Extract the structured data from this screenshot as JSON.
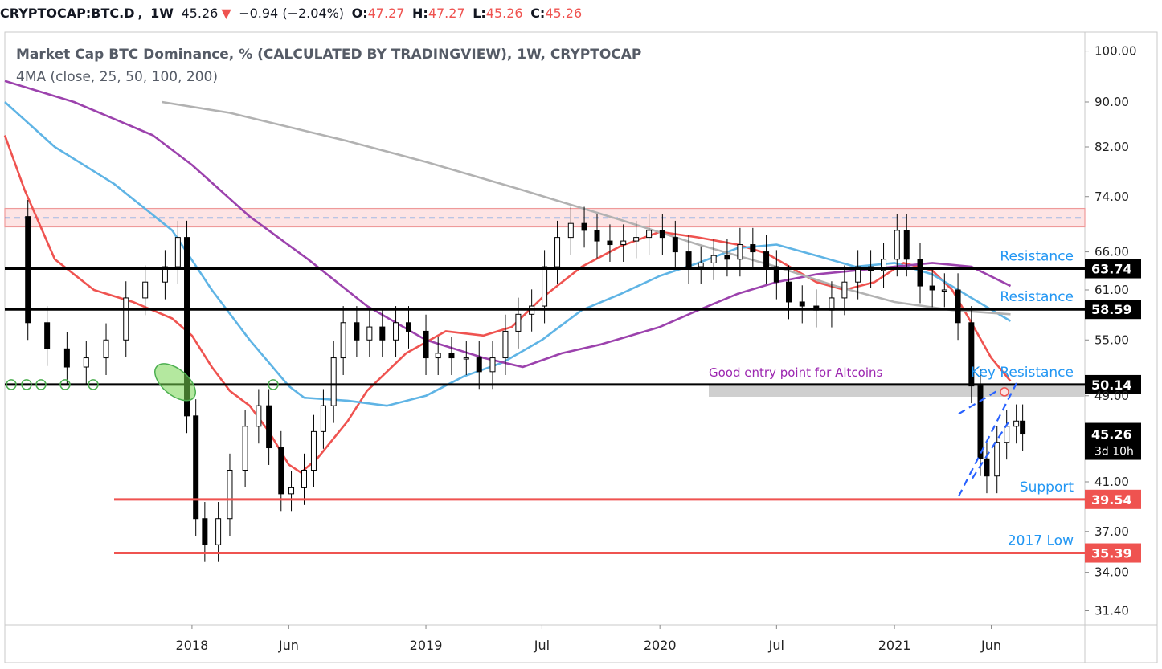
{
  "header": {
    "symbol": "CRYPTOCAP:BTC.D",
    "interval": "1W",
    "last": "45.26",
    "change": "−0.94 (−2.04%)",
    "o_label": "O:",
    "o": "47.27",
    "h_label": "H:",
    "h": "47.27",
    "l_label": "L:",
    "l": "45.26",
    "c_label": "C:",
    "c": "45.26",
    "down_arrow": "▼"
  },
  "colors": {
    "up_candle": "#ffffff",
    "down_candle": "#000000",
    "ma25": "#ef5350",
    "ma50": "#5fb4e5",
    "ma100": "#9c42ad",
    "ma200": "#b2b2b2",
    "resistance_line": "#000000",
    "support_line": "#ef5350",
    "annotation_blue": "#2196f3",
    "annotation_purple": "#9c27b0"
  },
  "chart_data": {
    "type": "candlestick",
    "title": "Market Cap BTC Dominance, % (CALCULATED BY TRADINGVIEW), 1W, CRYPTOCAP",
    "subtitle": "4MA (close, 25, 50, 100, 200)",
    "y_scale": "log",
    "ylim": [
      30.5,
      104
    ],
    "y_ticks": [
      "100.00",
      "90.00",
      "82.00",
      "74.00",
      "66.00",
      "61.00",
      "55.00",
      "49.00",
      "45.26",
      "41.00",
      "37.00",
      "34.00",
      "31.40"
    ],
    "y_tick_values": [
      100,
      90,
      82,
      74,
      66,
      61,
      55,
      49,
      41,
      37,
      34,
      31.4
    ],
    "x_ticks": [
      "2018",
      "Jun",
      "2019",
      "Jul",
      "2020",
      "Jul",
      "2021",
      "Jun"
    ],
    "x_tick_dates": [
      "2018-01-01",
      "2018-06-01",
      "2019-01-01",
      "2019-07-01",
      "2020-01-01",
      "2020-07-01",
      "2021-01-01",
      "2021-06-01"
    ],
    "x_range": [
      "2017-03-15",
      "2021-10-25"
    ],
    "levels": [
      {
        "value": 63.74,
        "label": "63.74",
        "note": "Resistance",
        "kind": "resistance"
      },
      {
        "value": 58.59,
        "label": "58.59",
        "note": "Resistance",
        "kind": "resistance"
      },
      {
        "value": 50.14,
        "label": "50.14",
        "note": "Key Resistance",
        "kind": "resistance"
      },
      {
        "value": 39.54,
        "label": "39.54",
        "note": "Support",
        "kind": "support"
      },
      {
        "value": 35.39,
        "label": "35.39",
        "note": "2017 Low",
        "kind": "support"
      }
    ],
    "last_price": {
      "value": 45.26,
      "label": "45.26",
      "countdown": "3d 10h"
    },
    "supply_zone": {
      "low": 69.5,
      "high": 72.2,
      "mid": 70.8
    },
    "annotations": [
      "Good entry point for Altcoins"
    ],
    "series": [
      {
        "name": "MA 25",
        "points": [
          [
            "2017-03-15",
            84
          ],
          [
            "2017-04-15",
            75
          ],
          [
            "2017-06-01",
            65
          ],
          [
            "2017-08-01",
            61
          ],
          [
            "2017-10-01",
            59.5
          ],
          [
            "2017-12-01",
            57.5
          ],
          [
            "2018-01-01",
            55.5
          ],
          [
            "2018-02-01",
            52
          ],
          [
            "2018-03-01",
            49.5
          ],
          [
            "2018-04-01",
            48
          ],
          [
            "2018-05-01",
            45.5
          ],
          [
            "2018-06-01",
            42.5
          ],
          [
            "2018-06-20",
            41.8
          ],
          [
            "2018-07-15",
            43
          ],
          [
            "2018-09-01",
            46.5
          ],
          [
            "2018-10-01",
            49.5
          ],
          [
            "2018-12-01",
            53.5
          ],
          [
            "2019-02-01",
            56
          ],
          [
            "2019-04-01",
            55.5
          ],
          [
            "2019-05-15",
            56.5
          ],
          [
            "2019-07-01",
            60
          ],
          [
            "2019-09-01",
            64
          ],
          [
            "2019-11-01",
            66.8
          ],
          [
            "2020-01-01",
            68.8
          ],
          [
            "2020-03-01",
            68
          ],
          [
            "2020-05-01",
            67
          ],
          [
            "2020-06-15",
            65.8
          ],
          [
            "2020-09-01",
            62
          ],
          [
            "2020-10-15",
            61
          ],
          [
            "2020-12-01",
            62
          ],
          [
            "2021-01-15",
            64.5
          ],
          [
            "2021-03-01",
            63.5
          ],
          [
            "2021-04-01",
            61
          ],
          [
            "2021-05-01",
            57
          ],
          [
            "2021-06-01",
            53
          ],
          [
            "2021-07-01",
            50.5
          ]
        ]
      },
      {
        "name": "MA 50",
        "points": [
          [
            "2017-03-15",
            90
          ],
          [
            "2017-06-01",
            82
          ],
          [
            "2017-09-01",
            76
          ],
          [
            "2017-12-01",
            69
          ],
          [
            "2018-02-01",
            61
          ],
          [
            "2018-04-01",
            55
          ],
          [
            "2018-06-01",
            50
          ],
          [
            "2018-06-25",
            48.8
          ],
          [
            "2018-09-01",
            48.5
          ],
          [
            "2018-11-01",
            48
          ],
          [
            "2019-01-01",
            49
          ],
          [
            "2019-03-01",
            51
          ],
          [
            "2019-05-01",
            52.5
          ],
          [
            "2019-07-01",
            55
          ],
          [
            "2019-09-01",
            58.5
          ],
          [
            "2019-11-01",
            60.5
          ],
          [
            "2020-01-01",
            62.8
          ],
          [
            "2020-03-01",
            64.5
          ],
          [
            "2020-05-01",
            66.5
          ],
          [
            "2020-07-01",
            67
          ],
          [
            "2020-09-01",
            65.5
          ],
          [
            "2020-11-01",
            64
          ],
          [
            "2021-01-01",
            64.5
          ],
          [
            "2021-03-01",
            63
          ],
          [
            "2021-05-01",
            60
          ],
          [
            "2021-07-01",
            57.2
          ]
        ]
      },
      {
        "name": "MA 100",
        "points": [
          [
            "2017-03-15",
            94
          ],
          [
            "2017-07-01",
            90
          ],
          [
            "2017-11-01",
            84
          ],
          [
            "2018-01-01",
            79
          ],
          [
            "2018-04-01",
            71
          ],
          [
            "2018-07-01",
            65
          ],
          [
            "2018-10-01",
            59
          ],
          [
            "2019-01-01",
            55
          ],
          [
            "2019-04-01",
            53
          ],
          [
            "2019-06-01",
            52
          ],
          [
            "2019-08-01",
            53.5
          ],
          [
            "2019-10-01",
            54.5
          ],
          [
            "2020-01-01",
            56.5
          ],
          [
            "2020-03-01",
            58.5
          ],
          [
            "2020-05-01",
            60.5
          ],
          [
            "2020-07-01",
            62
          ],
          [
            "2020-09-01",
            63
          ],
          [
            "2020-11-01",
            63.5
          ],
          [
            "2021-01-01",
            64
          ],
          [
            "2021-03-01",
            64.5
          ],
          [
            "2021-05-01",
            64
          ],
          [
            "2021-07-01",
            61.5
          ]
        ]
      },
      {
        "name": "MA 200",
        "points": [
          [
            "2017-11-15",
            90
          ],
          [
            "2018-03-01",
            88
          ],
          [
            "2018-09-01",
            83
          ],
          [
            "2019-01-01",
            79.5
          ],
          [
            "2019-06-01",
            75
          ],
          [
            "2019-11-01",
            70.5
          ],
          [
            "2020-03-01",
            67
          ],
          [
            "2020-07-01",
            64
          ],
          [
            "2020-10-01",
            61.5
          ],
          [
            "2021-01-01",
            59.5
          ],
          [
            "2021-04-01",
            58.5
          ],
          [
            "2021-07-01",
            58
          ]
        ]
      }
    ],
    "candles_approx_close": [
      [
        "2017-03-20",
        71
      ],
      [
        "2017-04-20",
        57
      ],
      [
        "2017-05-20",
        54
      ],
      [
        "2017-06-20",
        52
      ],
      [
        "2017-07-20",
        53
      ],
      [
        "2017-08-20",
        55
      ],
      [
        "2017-09-20",
        60
      ],
      [
        "2017-10-20",
        62
      ],
      [
        "2017-11-20",
        64
      ],
      [
        "2017-12-10",
        68
      ],
      [
        "2017-12-24",
        47
      ],
      [
        "2018-01-07",
        38
      ],
      [
        "2018-01-21",
        36
      ],
      [
        "2018-02-11",
        38
      ],
      [
        "2018-03-01",
        42
      ],
      [
        "2018-03-25",
        46
      ],
      [
        "2018-04-15",
        48
      ],
      [
        "2018-05-01",
        44
      ],
      [
        "2018-05-20",
        40
      ],
      [
        "2018-06-05",
        40.5
      ],
      [
        "2018-06-25",
        42
      ],
      [
        "2018-07-10",
        45.5
      ],
      [
        "2018-07-25",
        48
      ],
      [
        "2018-08-10",
        53
      ],
      [
        "2018-08-25",
        57
      ],
      [
        "2018-09-15",
        55
      ],
      [
        "2018-10-05",
        56.5
      ],
      [
        "2018-10-25",
        55
      ],
      [
        "2018-11-15",
        57
      ],
      [
        "2018-12-05",
        56
      ],
      [
        "2019-01-01",
        53
      ],
      [
        "2019-01-20",
        53.5
      ],
      [
        "2019-02-10",
        53
      ],
      [
        "2019-03-05",
        53
      ],
      [
        "2019-03-25",
        51.5
      ],
      [
        "2019-04-15",
        53
      ],
      [
        "2019-05-05",
        56
      ],
      [
        "2019-05-25",
        58
      ],
      [
        "2019-06-15",
        59
      ],
      [
        "2019-07-05",
        64
      ],
      [
        "2019-07-25",
        68
      ],
      [
        "2019-08-15",
        70
      ],
      [
        "2019-09-05",
        69
      ],
      [
        "2019-09-25",
        67.5
      ],
      [
        "2019-10-15",
        67
      ],
      [
        "2019-11-05",
        67.5
      ],
      [
        "2019-11-25",
        68
      ],
      [
        "2019-12-15",
        69
      ],
      [
        "2020-01-05",
        68
      ],
      [
        "2020-01-25",
        66
      ],
      [
        "2020-02-15",
        64
      ],
      [
        "2020-03-05",
        64.5
      ],
      [
        "2020-03-25",
        65.5
      ],
      [
        "2020-04-15",
        65
      ],
      [
        "2020-05-05",
        67
      ],
      [
        "2020-05-25",
        66
      ],
      [
        "2020-06-15",
        64
      ],
      [
        "2020-07-01",
        62
      ],
      [
        "2020-07-20",
        59.5
      ],
      [
        "2020-08-10",
        59
      ],
      [
        "2020-09-01",
        58.5
      ],
      [
        "2020-09-25",
        60
      ],
      [
        "2020-10-15",
        62
      ],
      [
        "2020-11-05",
        64
      ],
      [
        "2020-11-25",
        63.5
      ],
      [
        "2020-12-15",
        65
      ],
      [
        "2021-01-05",
        69
      ],
      [
        "2021-01-20",
        65
      ],
      [
        "2021-02-10",
        61.5
      ],
      [
        "2021-03-01",
        61
      ],
      [
        "2021-03-20",
        61
      ],
      [
        "2021-04-10",
        57
      ],
      [
        "2021-05-01",
        50
      ],
      [
        "2021-05-15",
        43
      ],
      [
        "2021-05-25",
        41.5
      ],
      [
        "2021-06-10",
        44.5
      ],
      [
        "2021-06-25",
        46
      ],
      [
        "2021-07-10",
        46.5
      ],
      [
        "2021-07-20",
        45.26
      ]
    ]
  }
}
